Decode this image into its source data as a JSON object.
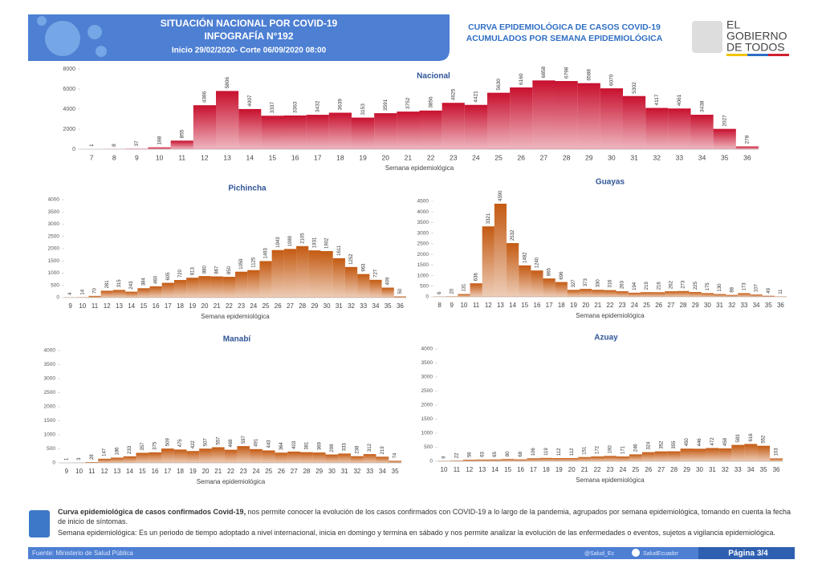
{
  "header": {
    "title": "SITUACIÓN NACIONAL POR  COVID-19",
    "subtitle": "INFOGRAFÍA N°192",
    "dates": "Inicio 29/02/2020- Corte 06/09/2020 08:00",
    "right_title_1": "CURVA EPIDEMIOLÓGICA DE CASOS COVID-19",
    "right_title_2": "ACUMULADOS POR SEMANA EPIDEMIOLÓGICA",
    "logo_1": "EL",
    "logo_2": "GOBIERNO",
    "logo_3": "DE TODOS"
  },
  "chart_data": [
    {
      "type": "bar",
      "title": "Nacional",
      "x_label": "Semana epidemiológica",
      "color": "#c8102e",
      "ylim": [
        0,
        8000
      ],
      "yticks": [
        0,
        2000,
        4000,
        6000,
        8000
      ],
      "categories": [
        7,
        8,
        9,
        10,
        11,
        12,
        13,
        14,
        15,
        16,
        17,
        18,
        19,
        20,
        21,
        22,
        23,
        24,
        25,
        26,
        27,
        28,
        29,
        30,
        31,
        32,
        33,
        34,
        35,
        36
      ],
      "values": [
        1,
        8,
        37,
        188,
        855,
        4386,
        5806,
        4007,
        3337,
        3363,
        3432,
        3639,
        3153,
        3591,
        3752,
        3856,
        4625,
        4421,
        5630,
        6160,
        6858,
        6798,
        6588,
        6070,
        5302,
        4117,
        4061,
        3438,
        2027,
        278
      ]
    },
    {
      "type": "bar",
      "title": "Pichincha",
      "x_label": "Semana epidemiológica",
      "color": "#c45a12",
      "ylim": [
        0,
        4000
      ],
      "yticks": [
        0,
        500,
        1000,
        1500,
        2000,
        2500,
        3000,
        3500,
        4000
      ],
      "categories": [
        9,
        10,
        11,
        12,
        13,
        14,
        15,
        16,
        17,
        18,
        19,
        20,
        21,
        22,
        23,
        24,
        25,
        26,
        27,
        28,
        29,
        30,
        31,
        32,
        33,
        34,
        35,
        36
      ],
      "values": [
        4,
        14,
        70,
        281,
        315,
        243,
        384,
        460,
        605,
        720,
        813,
        880,
        867,
        850,
        1059,
        1125,
        1493,
        1943,
        1989,
        2105,
        1931,
        1902,
        1611,
        1252,
        963,
        727,
        409,
        50
      ]
    },
    {
      "type": "bar",
      "title": "Guayas",
      "x_label": "Semana epidemiológica",
      "color": "#c45a12",
      "ylim": [
        0,
        4500
      ],
      "yticks": [
        0,
        500,
        1000,
        1500,
        2000,
        2500,
        3000,
        3500,
        4000,
        4500
      ],
      "categories": [
        8,
        9,
        10,
        11,
        12,
        13,
        14,
        15,
        16,
        17,
        18,
        19,
        20,
        21,
        22,
        23,
        24,
        25,
        26,
        27,
        28,
        29,
        30,
        31,
        32,
        33,
        34,
        35,
        36
      ],
      "values": [
        6,
        20,
        131,
        636,
        3321,
        4390,
        2532,
        1482,
        1240,
        865,
        696,
        327,
        373,
        330,
        316,
        263,
        194,
        219,
        216,
        262,
        273,
        225,
        175,
        130,
        88,
        173,
        107,
        49,
        11
      ]
    },
    {
      "type": "bar",
      "title": "Manabí",
      "x_label": "Semana epidemiológica",
      "color": "#c45a12",
      "ylim": [
        0,
        4000
      ],
      "yticks": [
        0,
        500,
        1000,
        1500,
        2000,
        2500,
        3000,
        3500,
        4000
      ],
      "categories": [
        9,
        10,
        11,
        12,
        13,
        14,
        15,
        16,
        17,
        18,
        19,
        20,
        21,
        22,
        23,
        24,
        25,
        26,
        27,
        28,
        29,
        30,
        31,
        32,
        33,
        34,
        35
      ],
      "values": [
        1,
        3,
        28,
        147,
        186,
        233,
        357,
        375,
        509,
        475,
        422,
        507,
        557,
        468,
        597,
        491,
        443,
        364,
        403,
        381,
        369,
        298,
        333,
        238,
        312,
        219,
        74
      ]
    },
    {
      "type": "bar",
      "title": "Azuay",
      "x_label": "Semana epidemiológica",
      "color": "#c45a12",
      "ylim": [
        0,
        4000
      ],
      "yticks": [
        0,
        500,
        1000,
        1500,
        2000,
        2500,
        3000,
        3500,
        4000
      ],
      "categories": [
        10,
        11,
        12,
        13,
        14,
        15,
        16,
        17,
        18,
        19,
        20,
        21,
        22,
        23,
        24,
        25,
        26,
        27,
        28,
        29,
        30,
        31,
        32,
        33,
        34,
        35,
        36
      ],
      "values": [
        9,
        22,
        56,
        63,
        65,
        80,
        68,
        106,
        119,
        112,
        112,
        151,
        172,
        190,
        171,
        246,
        324,
        352,
        355,
        450,
        446,
        472,
        458,
        583,
        616,
        552,
        103
      ]
    }
  ],
  "notes": {
    "bold_1": "Curva epidemiológica de casos confirmados Covid-19,",
    "text_1": "nos permite conocer la evolución de los casos confirmados con COVID-19 a lo largo de la pandemia, agrupados por semana epidemiológica, tomando en cuenta la fecha de inicio de síntomas.",
    "text_2": "Semana epidemiológica: Es un periodo de tiempo adoptado a nivel internacional, inicia en domingo y termina en sábado y nos permite analizar la evolución de las enfermedades o eventos, sujetos a vigilancia epidemiológica."
  },
  "footer": {
    "source": "Fuente: Ministerio de Salud Pública",
    "twitter": "@Salud_Ec",
    "facebook": "SaludEcuador",
    "page": "Página 3/4"
  }
}
